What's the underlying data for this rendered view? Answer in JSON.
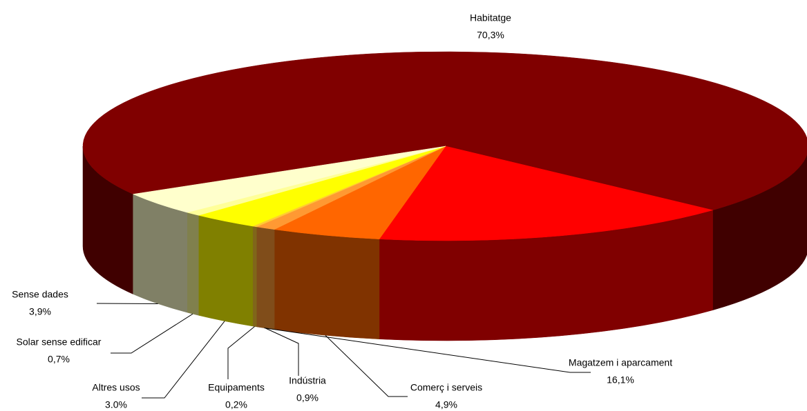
{
  "chart_data": {
    "type": "pie3d",
    "categories": [
      "Habitatge",
      "Magatzem i aparcament",
      "Comerç i serveis",
      "Indústria",
      "Equipaments",
      "Altres usos",
      "Solar sense edificar",
      "Sense dades"
    ],
    "values": [
      70.3,
      16.1,
      4.9,
      0.9,
      0.2,
      3.0,
      0.7,
      3.9
    ],
    "value_labels": [
      "70,3%",
      "16,1%",
      "4,9%",
      "0,9%",
      "0,2%",
      "3.0%",
      "0,7%",
      "3,9%"
    ],
    "colors": [
      "#800000",
      "#ff0000",
      "#ff6600",
      "#ff9933",
      "#ffcc33",
      "#ffff00",
      "#ffff99",
      "#ffffcc"
    ]
  }
}
